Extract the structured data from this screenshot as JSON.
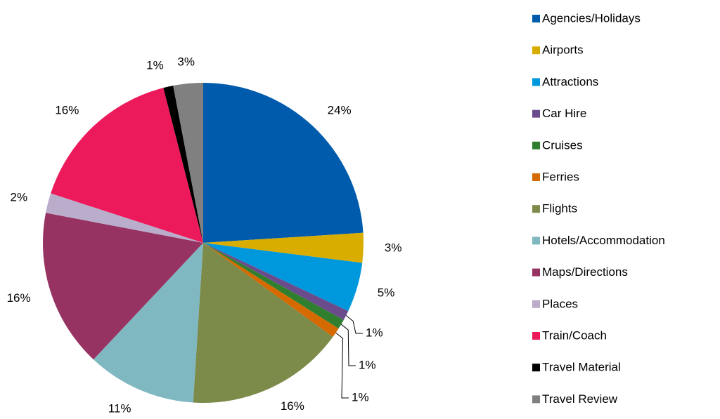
{
  "chart_data": {
    "type": "pie",
    "categories": [
      "Agencies/Holidays",
      "Airports",
      "Attractions",
      "Car Hire",
      "Cruises",
      "Ferries",
      "Flights",
      "Hotels/Accommodation",
      "Maps/Directions",
      "Places",
      "Train/Coach",
      "Travel Material",
      "Travel Review"
    ],
    "values": [
      24,
      3,
      5,
      1,
      1,
      1,
      16,
      11,
      16,
      2,
      16,
      1,
      3
    ],
    "value_labels": [
      "24%",
      "3%",
      "5%",
      "1%",
      "1%",
      "1%",
      "16%",
      "11%",
      "16%",
      "2%",
      "16%",
      "1%",
      "3%"
    ],
    "colors": [
      "#005bac",
      "#d9ac00",
      "#0098dc",
      "#6a4c8c",
      "#2f7f2f",
      "#d46a00",
      "#7c8a4a",
      "#80b8c2",
      "#963362",
      "#baaccb",
      "#ec1a5b",
      "#000000",
      "#808080"
    ],
    "legend": "right"
  }
}
